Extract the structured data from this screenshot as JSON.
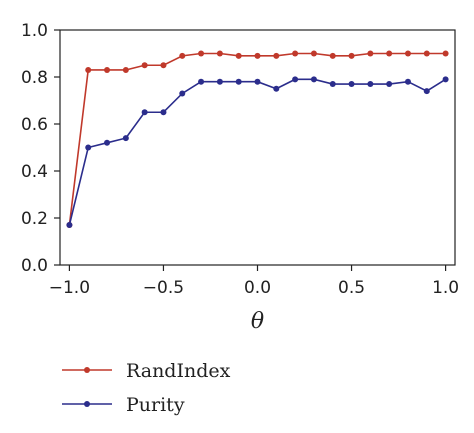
{
  "chart_data": {
    "type": "line",
    "xlabel": "θ",
    "ylabel": "",
    "xlim": [
      -1.05,
      1.05
    ],
    "ylim": [
      0.0,
      1.0
    ],
    "x": [
      -1.0,
      -0.9,
      -0.8,
      -0.7,
      -0.6,
      -0.5,
      -0.4,
      -0.3,
      -0.2,
      -0.1,
      0.0,
      0.1,
      0.2,
      0.3,
      0.4,
      0.5,
      0.6,
      0.7,
      0.8,
      0.9,
      1.0
    ],
    "x_ticks": [
      "−1.0",
      "−0.5",
      "0.0",
      "0.5",
      "1.0"
    ],
    "x_tick_values": [
      -1.0,
      -0.5,
      0.0,
      0.5,
      1.0
    ],
    "y_ticks": [
      "0.0",
      "0.2",
      "0.4",
      "0.6",
      "0.8",
      "1.0"
    ],
    "y_tick_values": [
      0.0,
      0.2,
      0.4,
      0.6,
      0.8,
      1.0
    ],
    "grid": false,
    "legend_position": "below",
    "series": [
      {
        "name": "RandIndex",
        "color": "#c0392b",
        "values": [
          0.17,
          0.83,
          0.83,
          0.83,
          0.85,
          0.85,
          0.89,
          0.9,
          0.9,
          0.89,
          0.89,
          0.89,
          0.9,
          0.9,
          0.89,
          0.89,
          0.9,
          0.9,
          0.9,
          0.9,
          0.9
        ]
      },
      {
        "name": "Purity",
        "color": "#2b2d8c",
        "values": [
          0.17,
          0.5,
          0.52,
          0.54,
          0.65,
          0.65,
          0.73,
          0.78,
          0.78,
          0.78,
          0.78,
          0.75,
          0.79,
          0.79,
          0.77,
          0.77,
          0.77,
          0.77,
          0.78,
          0.74,
          0.79
        ]
      }
    ]
  }
}
